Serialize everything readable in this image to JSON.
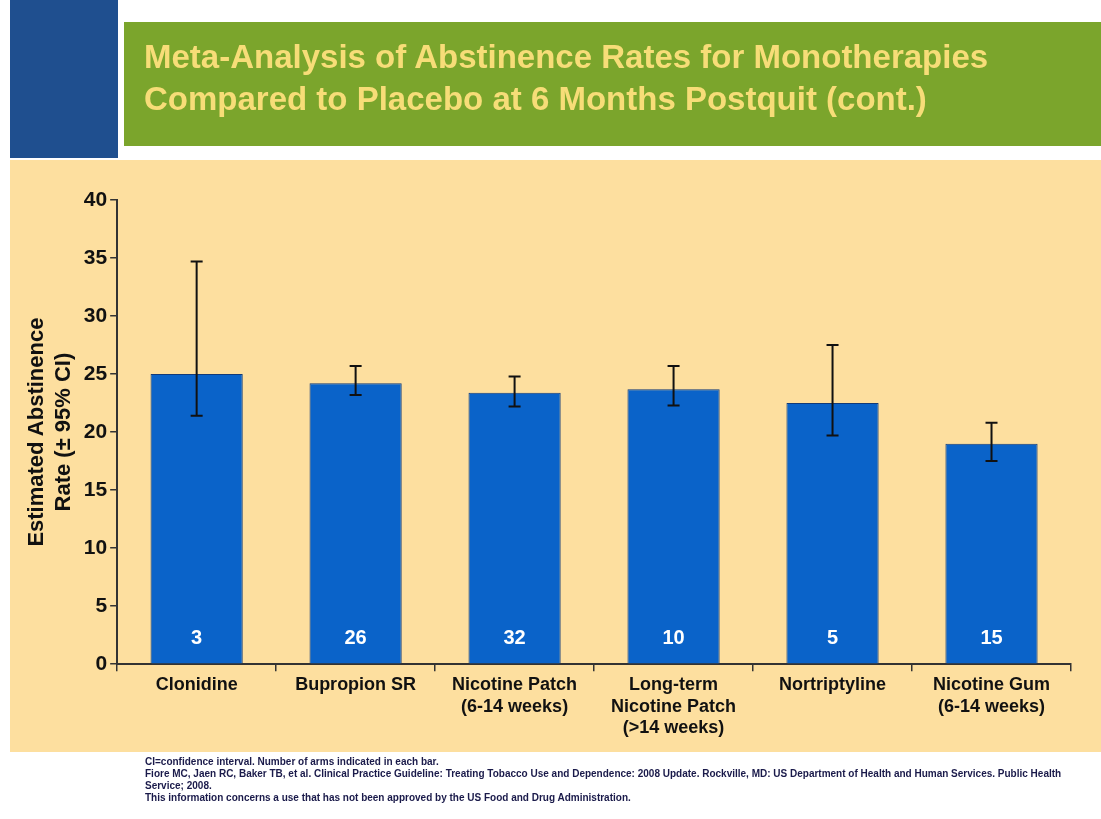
{
  "chart_data": {
    "type": "bar",
    "title": "Meta-Analysis of Abstinence Rates for Monotherapies Compared to Placebo at 6 Months Postquit (cont.)",
    "ylabel": "Estimated Abstinence Rate (± 95% CI)",
    "categories": [
      "Clonidine",
      "Bupropion SR",
      "Nicotine Patch (6-14 weeks)",
      "Long-term Nicotine Patch (>14 weeks)",
      "Nortriptyline",
      "Nicotine Gum (6-14 weeks)"
    ],
    "values": [
      25.0,
      24.2,
      23.4,
      23.7,
      22.5,
      19.0
    ],
    "errors": [
      [
        21.4,
        34.7
      ],
      [
        23.2,
        25.7
      ],
      [
        22.2,
        24.8
      ],
      [
        22.3,
        25.7
      ],
      [
        19.7,
        27.5
      ],
      [
        17.5,
        20.8
      ]
    ],
    "color": "#0a63c9",
    "ylim": [
      0,
      40
    ],
    "yticks": [
      0,
      5,
      10,
      15,
      20,
      25,
      30,
      35,
      40
    ],
    "grid": false,
    "legend": false,
    "annotations": [
      "CI=confidence interval. Number of arms indicated in each bar.",
      "Fiore MC, Jaen RC, Baker TB, et al. Clinical Practice Guideline: Treating Tobacco Use and Dependence: 2008 Update. Rockville, MD: US Department of Health and Human Services. Public Health Service; 2008.",
      "This information concerns a use that has not been approved by the US Food and Drug Administration.",
      "3",
      "26",
      "32",
      "10",
      "5",
      "15"
    ]
  }
}
